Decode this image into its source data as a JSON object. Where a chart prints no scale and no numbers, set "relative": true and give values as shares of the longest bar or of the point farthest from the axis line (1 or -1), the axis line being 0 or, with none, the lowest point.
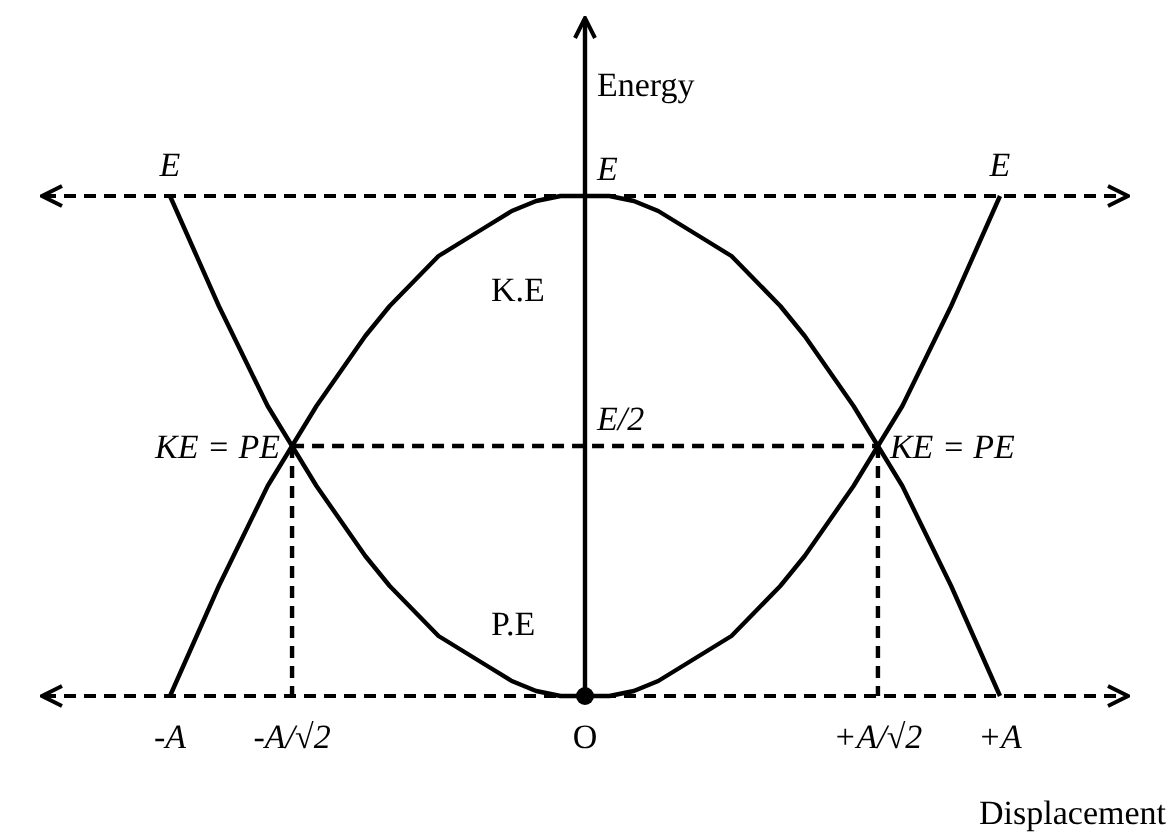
{
  "chart_data": {
    "type": "line",
    "xlabel": "Displacement",
    "ylabel": "Energy",
    "relative": true,
    "categories": [
      "-A",
      null,
      null,
      null,
      null,
      "-A/√2",
      null,
      null,
      null,
      null,
      null,
      null,
      null,
      null,
      null,
      null,
      null,
      "O",
      null,
      null,
      null,
      null,
      null,
      null,
      null,
      null,
      null,
      null,
      null,
      "+A/√2",
      null,
      null,
      null,
      null,
      "+A"
    ],
    "grid": false,
    "series": [
      {
        "name": "K.E",
        "color": "#000000",
        "values": [
          0,
          0.11,
          0.22,
          0.32,
          0.42,
          0.5,
          0.58,
          0.65,
          0.72,
          0.78,
          0.83,
          0.88,
          0.91,
          0.94,
          0.97,
          0.99,
          1,
          1,
          1,
          0.99,
          0.97,
          0.94,
          0.91,
          0.88,
          0.83,
          0.78,
          0.72,
          0.65,
          0.58,
          0.5,
          0.42,
          0.32,
          0.22,
          0.11,
          0
        ]
      },
      {
        "name": "P.E",
        "color": "#000000",
        "values": [
          1,
          0.89,
          0.78,
          0.68,
          0.58,
          0.5,
          0.42,
          0.35,
          0.28,
          0.22,
          0.17,
          0.12,
          0.09,
          0.06,
          0.03,
          0.01,
          0,
          0,
          0,
          0.01,
          0.03,
          0.06,
          0.09,
          0.12,
          0.17,
          0.22,
          0.28,
          0.35,
          0.42,
          0.5,
          0.58,
          0.68,
          0.78,
          0.89,
          1
        ]
      },
      {
        "color": "#000000",
        "line_style": "dashed",
        "values": [
          null,
          null,
          null,
          null,
          null,
          0.5,
          0.5,
          0.5,
          0.5,
          0.5,
          0.5,
          0.5,
          0.5,
          0.5,
          0.5,
          0.5,
          0.5,
          0.5,
          0.5,
          0.5,
          0.5,
          0.5,
          0.5,
          0.5,
          0.5,
          0.5,
          0.5,
          0.5,
          0.5,
          0.5,
          null,
          null,
          null,
          null,
          null
        ]
      },
      {
        "type": "scatter",
        "marker": "circle",
        "color": "#000000",
        "x": [
          "O"
        ],
        "values": [
          0
        ]
      }
    ],
    "ref_lines": [
      {
        "axis": "y",
        "value": 1,
        "line_style": "dashed",
        "color": "#000000"
      }
    ],
    "annotations": [
      {
        "text": "E",
        "x": "-A",
        "y": 1
      },
      {
        "text": "E",
        "x": "O",
        "y": 1
      },
      {
        "text": "E",
        "x": "+A",
        "y": 1
      },
      {
        "text": "E/2",
        "x": "O",
        "y": 0.5
      },
      {
        "text": "KE = PE",
        "x": "-A/√2",
        "y": 0.5
      },
      {
        "text": "KE = PE",
        "x": "+A/√2",
        "y": 0.5
      }
    ]
  }
}
